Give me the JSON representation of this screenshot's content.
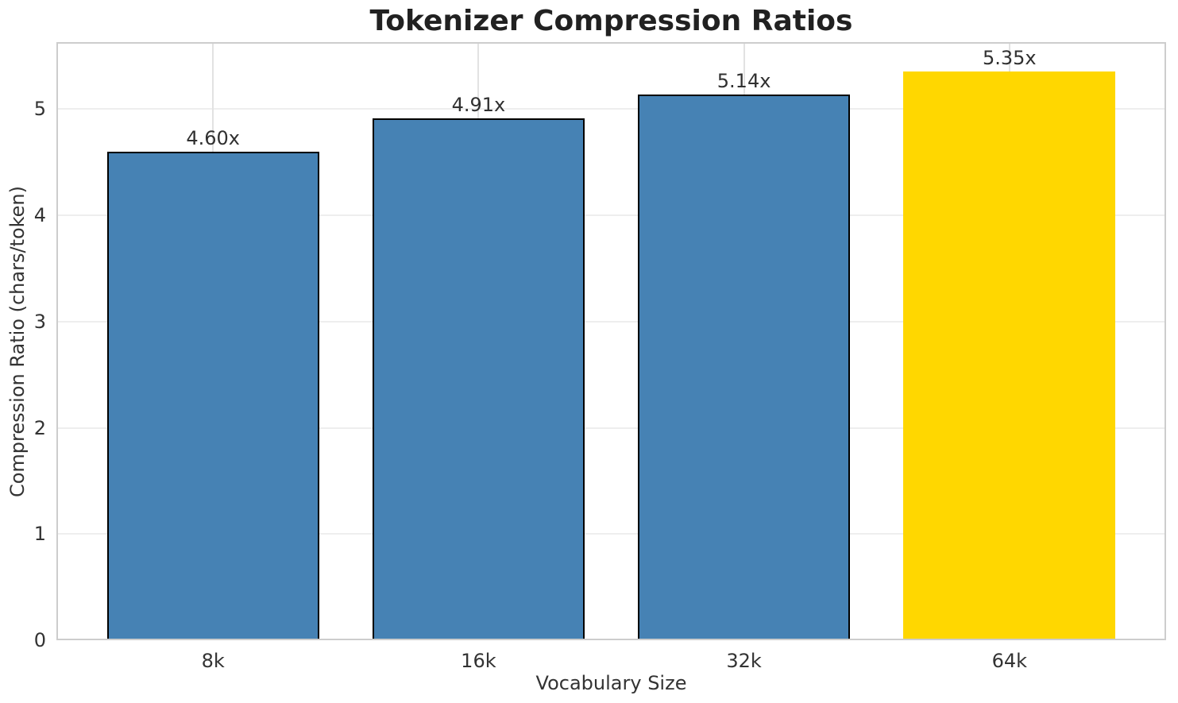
{
  "chart_data": {
    "type": "bar",
    "title": "Tokenizer Compression Ratios",
    "xlabel": "Vocabulary Size",
    "ylabel": "Compression Ratio (chars/token)",
    "categories": [
      "8k",
      "16k",
      "32k",
      "64k"
    ],
    "values": [
      4.6,
      4.91,
      5.14,
      5.35
    ],
    "bar_labels": [
      "4.60x",
      "4.91x",
      "5.14x",
      "5.35x"
    ],
    "bar_colors": [
      "#4682b4",
      "#4682b4",
      "#4682b4",
      "#ffd700"
    ],
    "bar_edge_colors": [
      "#000000",
      "#000000",
      "#000000",
      "transparent"
    ],
    "highlight_index": 3,
    "yticks": [
      "0",
      "1",
      "2",
      "3",
      "4",
      "5"
    ],
    "ylim": [
      0,
      5.63
    ],
    "xlim": [
      -0.59,
      3.59
    ],
    "bar_width": 0.8,
    "grid": true,
    "legend_position": "none"
  },
  "colors": {
    "background": "#ffffff",
    "spine": "#cdcdcd",
    "grid_horizontal": "#eeeeee",
    "grid_vertical": "#e2e2e2",
    "title_text": "#212121",
    "tick_text": "#333333",
    "bar_label_text": "#303030",
    "bar_blue": "#4682b4",
    "bar_highlight_gold": "#ffd700",
    "bar_edge": "#000000"
  }
}
